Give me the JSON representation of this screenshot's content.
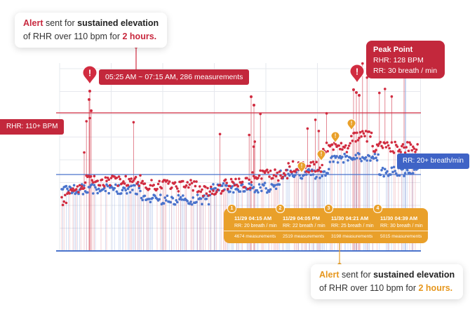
{
  "top_alert": {
    "word_alert": "Alert",
    "sent_for": " sent for ",
    "bold_phrase": "sustained elevation",
    "line2_prefix": "of RHR over 110 bpm for ",
    "duration": "2 hours."
  },
  "bottom_alert": {
    "word_alert": "Alert",
    "sent_for": " sent for ",
    "bold_phrase": "sustained elevation",
    "line2_prefix": "of RHR over 110 bpm for ",
    "duration": "2 hours."
  },
  "rhr_threshold_label": "RHR: 110+ BPM",
  "rr_threshold_label": "RR: 20+ breath/min",
  "window_label": "05:25 AM ~ 07:15 AM, 286 measurements",
  "peak": {
    "title": "Peak Point",
    "rhr": "RHR: 128 BPM",
    "rr": "RR: 30 breath / min"
  },
  "summary": [
    {
      "num": "1",
      "date": "11/29  04:15 AM",
      "rr": "RR: 20 breath / min",
      "measurements": "4674 measurements"
    },
    {
      "num": "2",
      "date": "11/29  04:05 PM",
      "rr": "RR: 22 breath / min",
      "measurements": "2519 measurements"
    },
    {
      "num": "3",
      "date": "11/30  04:21 AM",
      "rr": "RR: 25 breath / min",
      "measurements": "3198 measurements"
    },
    {
      "num": "4",
      "date": "11/30  04:39 AM",
      "rr": "RR: 30 breath / min",
      "measurements": "5015 measurements"
    }
  ],
  "chart_data": {
    "type": "scatter",
    "series": [
      {
        "color": "#d12c40",
        "values_description": "RHR"
      },
      {
        "color": "#4a73cc",
        "values_description": "RR"
      }
    ],
    "rhr_threshold": 110,
    "rr_threshold": 20,
    "peak_rhr": 128,
    "peak_rr": 30,
    "grid": true,
    "colors": {
      "rhr": "#d12c40",
      "rr": "#4a73cc",
      "alert": "#e9a02a"
    }
  }
}
